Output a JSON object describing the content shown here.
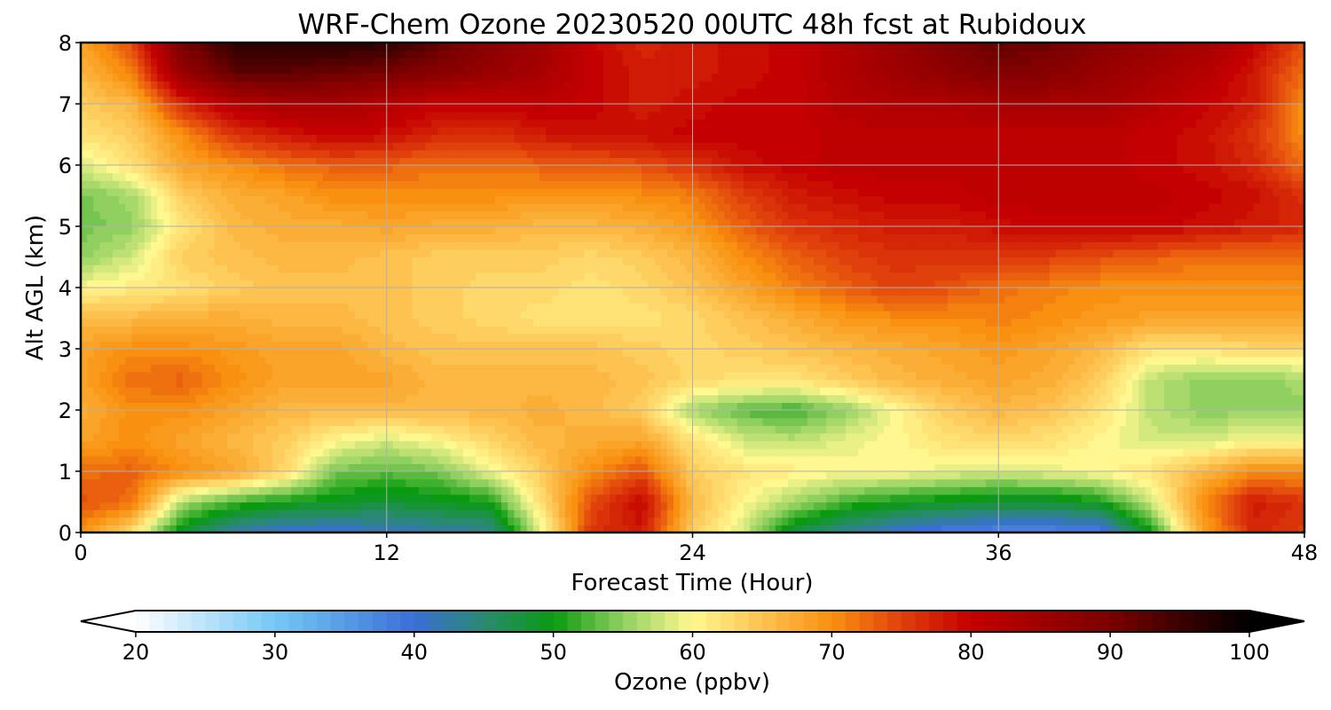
{
  "chart_data": {
    "type": "heatmap",
    "title": "WRF-Chem Ozone  20230520 00UTC 48h fcst at Rubidoux",
    "xlabel": "Forecast Time (Hour)",
    "ylabel": "Alt AGL (km)",
    "xlim": [
      0,
      48
    ],
    "ylim": [
      0,
      8
    ],
    "xticks": [
      0,
      12,
      24,
      36,
      48
    ],
    "yticks": [
      0,
      1,
      2,
      3,
      4,
      5,
      6,
      7,
      8
    ],
    "grid": true,
    "colorbar": {
      "label": "Ozone  (ppbv)",
      "orientation": "horizontal",
      "placement": "bottom",
      "min": 20,
      "max": 100,
      "ticks": [
        20,
        30,
        40,
        50,
        60,
        70,
        80,
        90,
        100
      ],
      "extend": "both",
      "color_stops": [
        {
          "v": 20,
          "c": "#ffffff"
        },
        {
          "v": 30,
          "c": "#74c8f5"
        },
        {
          "v": 40,
          "c": "#3a6ed6"
        },
        {
          "v": 45,
          "c": "#2a8a70"
        },
        {
          "v": 50,
          "c": "#0a9a10"
        },
        {
          "v": 55,
          "c": "#90d060"
        },
        {
          "v": 60,
          "c": "#fff890"
        },
        {
          "v": 65,
          "c": "#fdc250"
        },
        {
          "v": 70,
          "c": "#f99010"
        },
        {
          "v": 75,
          "c": "#e0400c"
        },
        {
          "v": 80,
          "c": "#c40000"
        },
        {
          "v": 90,
          "c": "#7a0000"
        },
        {
          "v": 100,
          "c": "#000000"
        }
      ]
    },
    "x": [
      0,
      2,
      4,
      6,
      8,
      10,
      12,
      14,
      16,
      18,
      20,
      22,
      24,
      26,
      28,
      30,
      32,
      34,
      36,
      38,
      40,
      42,
      44,
      46,
      48
    ],
    "y": [
      0,
      0.5,
      1,
      1.5,
      2,
      2.5,
      3,
      3.5,
      4,
      4.5,
      5,
      5.5,
      6,
      6.5,
      7,
      7.5,
      8
    ],
    "z": [
      [
        70,
        62,
        48,
        42,
        40,
        40,
        41,
        42,
        43,
        58,
        76,
        78,
        64,
        58,
        47,
        43,
        40,
        38,
        37,
        37,
        38,
        50,
        68,
        77,
        75
      ],
      [
        74,
        72,
        56,
        52,
        50,
        49,
        48,
        49,
        50,
        62,
        74,
        80,
        66,
        60,
        56,
        52,
        50,
        49,
        48,
        48,
        50,
        58,
        70,
        78,
        76
      ],
      [
        72,
        73,
        70,
        68,
        63,
        54,
        53,
        54,
        59,
        64,
        70,
        74,
        64,
        62,
        61,
        60,
        60,
        59,
        58,
        59,
        60,
        62,
        66,
        70,
        70
      ],
      [
        68,
        70,
        68,
        66,
        64,
        60,
        58,
        60,
        63,
        66,
        67,
        68,
        62,
        58,
        57,
        59,
        60,
        62,
        63,
        62,
        60,
        58,
        58,
        60,
        60
      ],
      [
        67,
        70,
        70,
        68,
        66,
        66,
        66,
        66,
        66,
        67,
        66,
        64,
        56,
        53,
        52,
        55,
        60,
        64,
        66,
        65,
        62,
        57,
        55,
        55,
        55
      ],
      [
        68,
        72,
        73,
        70,
        68,
        68,
        68,
        66,
        66,
        66,
        66,
        65,
        63,
        62,
        62,
        64,
        66,
        67,
        68,
        67,
        64,
        57,
        55,
        55,
        56
      ],
      [
        68,
        70,
        70,
        69,
        68,
        68,
        66,
        65,
        65,
        65,
        65,
        64,
        63,
        64,
        65,
        66,
        67,
        68,
        69,
        68,
        66,
        62,
        62,
        63,
        63
      ],
      [
        66,
        66,
        67,
        67,
        66,
        66,
        65,
        64,
        63,
        62,
        62,
        62,
        63,
        65,
        67,
        69,
        70,
        70,
        71,
        70,
        69,
        68,
        68,
        68,
        68
      ],
      [
        60,
        61,
        62,
        64,
        65,
        65,
        65,
        64,
        63,
        63,
        62,
        63,
        65,
        68,
        71,
        73,
        75,
        74,
        72,
        71,
        70,
        70,
        70,
        70,
        70
      ],
      [
        55,
        58,
        64,
        65,
        66,
        66,
        65,
        64,
        64,
        64,
        63,
        64,
        66,
        70,
        73,
        75,
        76,
        76,
        76,
        75,
        74,
        73,
        72,
        72,
        72
      ],
      [
        54,
        55,
        62,
        66,
        67,
        67,
        68,
        67,
        67,
        66,
        66,
        67,
        69,
        73,
        76,
        77,
        78,
        78,
        79,
        80,
        80,
        80,
        79,
        78,
        77
      ],
      [
        54,
        56,
        64,
        67,
        68,
        70,
        70,
        70,
        70,
        69,
        69,
        70,
        71,
        75,
        78,
        79,
        80,
        80,
        81,
        81,
        81,
        81,
        80,
        79,
        76
      ],
      [
        58,
        62,
        68,
        70,
        72,
        73,
        73,
        72,
        72,
        73,
        73,
        74,
        76,
        79,
        80,
        81,
        81,
        81,
        81,
        81,
        81,
        80,
        79,
        77,
        72
      ],
      [
        62,
        64,
        70,
        76,
        78,
        80,
        79,
        77,
        76,
        78,
        79,
        79,
        80,
        80,
        80,
        81,
        81,
        81,
        81,
        81,
        81,
        80,
        79,
        76,
        70
      ],
      [
        64,
        66,
        77,
        82,
        84,
        84,
        82,
        80,
        80,
        81,
        80,
        78,
        79,
        80,
        80,
        82,
        83,
        83,
        84,
        84,
        84,
        82,
        80,
        78,
        70
      ],
      [
        66,
        71,
        86,
        92,
        92,
        91,
        90,
        88,
        86,
        84,
        80,
        78,
        78,
        79,
        80,
        83,
        85,
        87,
        89,
        88,
        86,
        84,
        82,
        78,
        72
      ],
      [
        68,
        74,
        90,
        96,
        97,
        97,
        96,
        92,
        88,
        85,
        80,
        77,
        78,
        79,
        80,
        83,
        86,
        89,
        92,
        91,
        88,
        86,
        84,
        80,
        74
      ]
    ]
  }
}
